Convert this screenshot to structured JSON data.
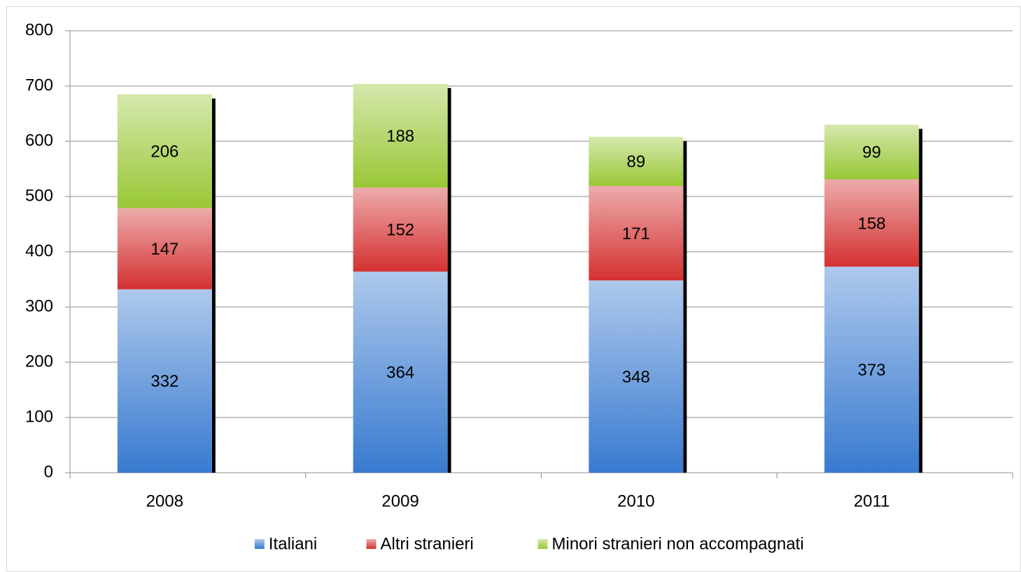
{
  "chart_data": {
    "type": "stacked_bar",
    "categories": [
      "2008",
      "2009",
      "2010",
      "2011"
    ],
    "series": [
      {
        "name": "Italiani",
        "color": "#4a86d4",
        "values": [
          332,
          364,
          348,
          373
        ]
      },
      {
        "name": "Altri stranieri",
        "color": "#d84444",
        "values": [
          147,
          152,
          171,
          158
        ]
      },
      {
        "name": "Minori stranieri non accompagnati",
        "color": "#a2cc48",
        "values": [
          206,
          188,
          89,
          99
        ]
      }
    ],
    "ylim": [
      0,
      800
    ],
    "yticks": [
      0,
      100,
      200,
      300,
      400,
      500,
      600,
      700,
      800
    ],
    "grid": true,
    "legend": "bottom"
  }
}
